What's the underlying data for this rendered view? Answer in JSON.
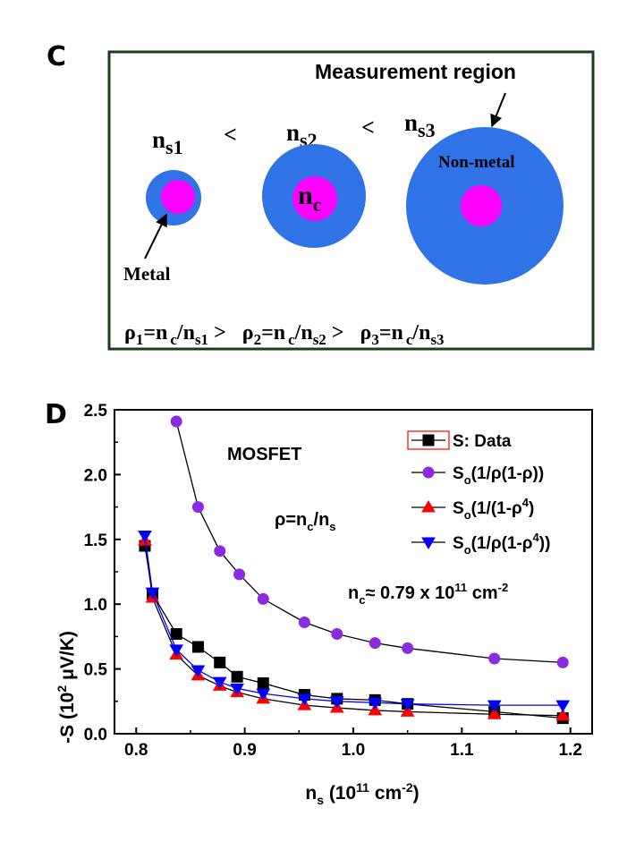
{
  "panel_c": {
    "label": "C",
    "measurement_label": "Measurement region",
    "density_labels": [
      {
        "base": "n",
        "sub": "s1"
      },
      {
        "base": "n",
        "sub": "s2"
      },
      {
        "base": "n",
        "sub": "s3"
      }
    ],
    "less_than": "<",
    "center_label": {
      "base": "n",
      "sub": "c"
    },
    "nonmetal_label": "Non-metal",
    "metal_label": "Metal",
    "ratio_terms": [
      {
        "rho": "ρ",
        "idx": "1",
        "eq": "=n",
        "c": "c",
        "slash": "/n",
        "s": "s1",
        "after": ">"
      },
      {
        "rho": "ρ",
        "idx": "2",
        "eq": "=n",
        "c": "c",
        "slash": "/n",
        "s": "s2",
        "after": ">"
      },
      {
        "rho": "ρ",
        "idx": "3",
        "eq": "=n",
        "c": "c",
        "slash": "/n",
        "s": "s3",
        "after": ""
      }
    ],
    "colors": {
      "outer": "#2f73e6",
      "inner": "#ff00ff",
      "frame": "#1b3d1b"
    }
  },
  "panel_d": {
    "label": "D",
    "annotation_device": "MOSFET",
    "annotation_rho": {
      "a": "ρ=n",
      "b": "c",
      "c": "/n",
      "d": "s"
    },
    "annotation_nc": {
      "a": "n",
      "b": "c",
      "c": "≈ 0.79 x 10",
      "d": "11",
      "e": " cm",
      "f": "-2"
    }
  },
  "chart_data": {
    "type": "line",
    "xlabel": {
      "a": "n",
      "b": "s",
      "c": " (10",
      "d": "11",
      "e": " cm",
      "f": "-2",
      "g": ")"
    },
    "ylabel": {
      "a": "-S (10",
      "b": "2",
      "c": " μV/K)"
    },
    "xlim": [
      0.78,
      1.22
    ],
    "ylim": [
      0.0,
      2.5
    ],
    "xticks": [
      0.8,
      0.9,
      1.0,
      1.1,
      1.2
    ],
    "xtick_labels": [
      "0.8",
      "0.9",
      "1.0",
      "1.1",
      "1.2"
    ],
    "yticks": [
      0.0,
      0.5,
      1.0,
      1.5,
      2.0,
      2.5
    ],
    "ytick_labels": [
      "0.0",
      "0.5",
      "1.0",
      "1.5",
      "2.0",
      "2.5"
    ],
    "legend_position": "top-right",
    "series": [
      {
        "name": "S: Data",
        "legend": {
          "a": "S: Data"
        },
        "marker": "square",
        "color": "#000000",
        "x": [
          0.808,
          0.815,
          0.837,
          0.857,
          0.877,
          0.893,
          0.917,
          0.955,
          0.985,
          1.02,
          1.05,
          1.13,
          1.193
        ],
        "y": [
          1.45,
          1.08,
          0.77,
          0.67,
          0.55,
          0.44,
          0.39,
          0.3,
          0.27,
          0.26,
          0.23,
          0.17,
          0.12
        ]
      },
      {
        "name": "So(1/ρ(1-ρ))",
        "legend": {
          "a": "S",
          "b": "o",
          "c": "(1/ρ(1-ρ))"
        },
        "marker": "circle",
        "color": "#8a2be2",
        "x": [
          0.837,
          0.857,
          0.877,
          0.895,
          0.917,
          0.955,
          0.985,
          1.02,
          1.05,
          1.13,
          1.193
        ],
        "y": [
          2.41,
          1.75,
          1.41,
          1.23,
          1.04,
          0.86,
          0.77,
          0.7,
          0.66,
          0.58,
          0.55
        ]
      },
      {
        "name": "So(1/(1-ρ4)",
        "legend": {
          "a": "S",
          "b": "o",
          "c": "(1/(1-ρ",
          "d": "4",
          "e": ")"
        },
        "marker": "triangle-up",
        "color": "#ff0000",
        "x": [
          0.808,
          0.815,
          0.837,
          0.857,
          0.877,
          0.893,
          0.917,
          0.955,
          0.985,
          1.02,
          1.05,
          1.13,
          1.193
        ],
        "y": [
          1.49,
          1.05,
          0.61,
          0.45,
          0.37,
          0.32,
          0.27,
          0.22,
          0.2,
          0.18,
          0.17,
          0.15,
          0.14
        ]
      },
      {
        "name": "So(1/ρ(1-ρ4))",
        "legend": {
          "a": "S",
          "b": "o",
          "c": "(1/ρ(1-ρ",
          "d": "4",
          "e": "))"
        },
        "marker": "triangle-down",
        "color": "#0000ff",
        "x": [
          0.808,
          0.815,
          0.837,
          0.857,
          0.877,
          0.893,
          0.917,
          0.955,
          0.985,
          1.02,
          1.05,
          1.13,
          1.193
        ],
        "y": [
          1.53,
          1.09,
          0.65,
          0.49,
          0.4,
          0.35,
          0.31,
          0.27,
          0.25,
          0.24,
          0.23,
          0.22,
          0.22
        ]
      }
    ]
  }
}
